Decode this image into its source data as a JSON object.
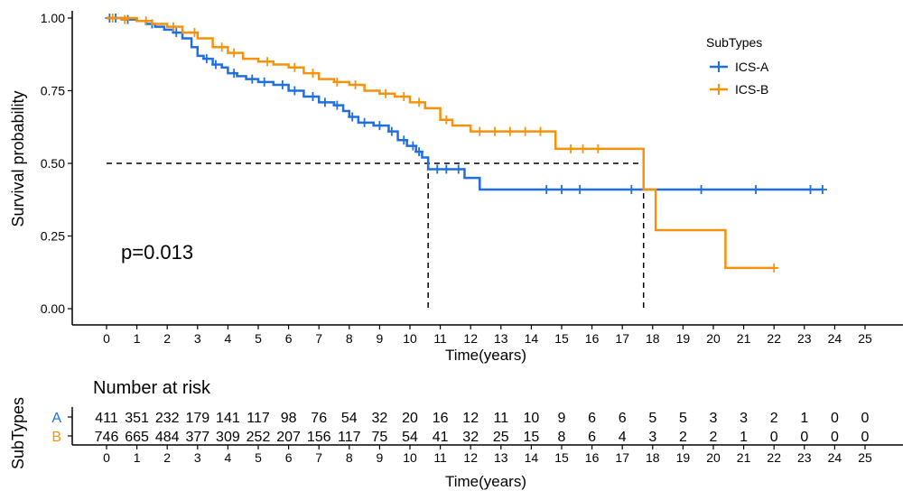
{
  "chart_data": {
    "type": "line",
    "subtype": "kaplan-meier",
    "xlabel": "Time(years)",
    "ylabel": "Survival probability",
    "xlim": [
      0,
      25
    ],
    "ylim": [
      0,
      1
    ],
    "x_ticks": [
      "0",
      "1",
      "2",
      "3",
      "4",
      "5",
      "6",
      "7",
      "8",
      "9",
      "10",
      "11",
      "12",
      "13",
      "14",
      "15",
      "16",
      "17",
      "18",
      "19",
      "20",
      "21",
      "22",
      "23",
      "24",
      "25"
    ],
    "y_ticks": [
      "0.00",
      "0.25",
      "0.50",
      "0.75",
      "1.00"
    ],
    "pvalue_label": "p=0.013",
    "legend": {
      "title": "SubTypes",
      "position": "top-right"
    },
    "median_line": {
      "y": 0.5,
      "x_a": 10.6,
      "x_b": 17.7
    },
    "series": [
      {
        "name": "ICS-A",
        "color": "#1f6fe0",
        "steps": [
          [
            0,
            1.0
          ],
          [
            0.5,
            0.995
          ],
          [
            1,
            0.99
          ],
          [
            1.3,
            0.98
          ],
          [
            1.6,
            0.97
          ],
          [
            1.9,
            0.96
          ],
          [
            2.2,
            0.95
          ],
          [
            2.5,
            0.93
          ],
          [
            2.8,
            0.9
          ],
          [
            3.0,
            0.87
          ],
          [
            3.2,
            0.86
          ],
          [
            3.5,
            0.84
          ],
          [
            3.8,
            0.83
          ],
          [
            4.0,
            0.81
          ],
          [
            4.3,
            0.8
          ],
          [
            4.6,
            0.79
          ],
          [
            5.0,
            0.78
          ],
          [
            5.5,
            0.77
          ],
          [
            6.0,
            0.75
          ],
          [
            6.5,
            0.73
          ],
          [
            7.0,
            0.71
          ],
          [
            7.5,
            0.7
          ],
          [
            7.8,
            0.68
          ],
          [
            8.0,
            0.66
          ],
          [
            8.3,
            0.64
          ],
          [
            8.8,
            0.63
          ],
          [
            9.3,
            0.61
          ],
          [
            9.6,
            0.58
          ],
          [
            9.9,
            0.56
          ],
          [
            10.2,
            0.54
          ],
          [
            10.4,
            0.52
          ],
          [
            10.6,
            0.48
          ],
          [
            11.8,
            0.45
          ],
          [
            12.3,
            0.41
          ],
          [
            23.6,
            0.41
          ]
        ],
        "censors": [
          [
            0.1,
            1.0
          ],
          [
            0.3,
            1.0
          ],
          [
            0.7,
            0.995
          ],
          [
            1.5,
            0.98
          ],
          [
            2.3,
            0.95
          ],
          [
            3.3,
            0.86
          ],
          [
            3.6,
            0.84
          ],
          [
            4.2,
            0.81
          ],
          [
            4.8,
            0.79
          ],
          [
            5.2,
            0.78
          ],
          [
            5.8,
            0.77
          ],
          [
            6.2,
            0.75
          ],
          [
            6.8,
            0.73
          ],
          [
            7.2,
            0.71
          ],
          [
            7.6,
            0.7
          ],
          [
            8.1,
            0.66
          ],
          [
            8.5,
            0.64
          ],
          [
            9.0,
            0.63
          ],
          [
            9.4,
            0.61
          ],
          [
            9.8,
            0.58
          ],
          [
            10.1,
            0.56
          ],
          [
            10.3,
            0.54
          ],
          [
            10.9,
            0.48
          ],
          [
            11.2,
            0.48
          ],
          [
            11.6,
            0.48
          ],
          [
            14.5,
            0.41
          ],
          [
            15.0,
            0.41
          ],
          [
            15.6,
            0.41
          ],
          [
            17.3,
            0.41
          ],
          [
            19.6,
            0.41
          ],
          [
            21.4,
            0.41
          ],
          [
            23.2,
            0.41
          ],
          [
            23.6,
            0.41
          ]
        ]
      },
      {
        "name": "ICS-B",
        "color": "#f5920b",
        "steps": [
          [
            0,
            1.0
          ],
          [
            1,
            0.99
          ],
          [
            1.5,
            0.98
          ],
          [
            2.0,
            0.97
          ],
          [
            2.5,
            0.95
          ],
          [
            3.0,
            0.93
          ],
          [
            3.5,
            0.9
          ],
          [
            4.0,
            0.88
          ],
          [
            4.5,
            0.86
          ],
          [
            5.0,
            0.85
          ],
          [
            5.5,
            0.84
          ],
          [
            6.0,
            0.83
          ],
          [
            6.5,
            0.81
          ],
          [
            7.0,
            0.79
          ],
          [
            7.5,
            0.78
          ],
          [
            8.0,
            0.77
          ],
          [
            8.5,
            0.75
          ],
          [
            9.0,
            0.74
          ],
          [
            9.5,
            0.73
          ],
          [
            10.0,
            0.71
          ],
          [
            10.5,
            0.69
          ],
          [
            11.0,
            0.65
          ],
          [
            11.4,
            0.63
          ],
          [
            12.0,
            0.61
          ],
          [
            14.8,
            0.55
          ],
          [
            17.7,
            0.41
          ],
          [
            18.1,
            0.27
          ],
          [
            20.4,
            0.14
          ],
          [
            22.0,
            0.14
          ]
        ],
        "censors": [
          [
            0.2,
            1.0
          ],
          [
            0.6,
            0.995
          ],
          [
            1.3,
            0.99
          ],
          [
            2.2,
            0.97
          ],
          [
            2.9,
            0.95
          ],
          [
            3.8,
            0.9
          ],
          [
            4.2,
            0.88
          ],
          [
            5.3,
            0.85
          ],
          [
            6.2,
            0.83
          ],
          [
            6.8,
            0.81
          ],
          [
            7.6,
            0.78
          ],
          [
            8.2,
            0.77
          ],
          [
            9.2,
            0.74
          ],
          [
            9.8,
            0.73
          ],
          [
            10.3,
            0.71
          ],
          [
            11.2,
            0.65
          ],
          [
            12.3,
            0.61
          ],
          [
            12.8,
            0.61
          ],
          [
            13.3,
            0.61
          ],
          [
            13.8,
            0.61
          ],
          [
            14.3,
            0.61
          ],
          [
            15.3,
            0.55
          ],
          [
            15.7,
            0.55
          ],
          [
            16.2,
            0.55
          ],
          [
            22.0,
            0.14
          ]
        ]
      }
    ],
    "risk_table": {
      "title": "Number at risk",
      "ylabel": "SubTypes",
      "xlabel": "Time(years)",
      "rows": [
        {
          "label": "A",
          "color": "#1f6fe0",
          "values": [
            "411",
            "351",
            "232",
            "179",
            "141",
            "117",
            "98",
            "76",
            "54",
            "32",
            "20",
            "16",
            "12",
            "11",
            "10",
            "9",
            "6",
            "6",
            "5",
            "5",
            "3",
            "3",
            "2",
            "1",
            "0",
            "0"
          ]
        },
        {
          "label": "B",
          "color": "#f5920b",
          "values": [
            "746",
            "665",
            "484",
            "377",
            "309",
            "252",
            "207",
            "156",
            "117",
            "75",
            "54",
            "41",
            "32",
            "25",
            "15",
            "8",
            "6",
            "4",
            "3",
            "2",
            "2",
            "1",
            "0",
            "0",
            "0",
            "0"
          ]
        }
      ]
    }
  }
}
